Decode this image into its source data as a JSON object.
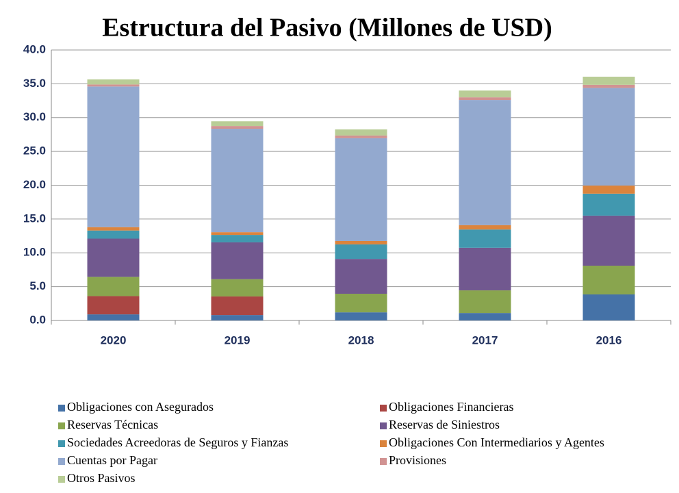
{
  "chart_data": {
    "type": "stacked_bar",
    "title": "Estructura del Pasivo (Millones de USD)",
    "categories": [
      "2020",
      "2019",
      "2018",
      "2017",
      "2016"
    ],
    "series": [
      {
        "name": "Obligaciones con Asegurados",
        "color": "#4572a7",
        "values": [
          0.9,
          0.8,
          1.2,
          1.1,
          3.85
        ]
      },
      {
        "name": "Obligaciones Financieras",
        "color": "#aa4643",
        "values": [
          2.7,
          2.75,
          0,
          0,
          0
        ]
      },
      {
        "name": "Reservas Técnicas",
        "color": "#89a54e",
        "values": [
          2.85,
          2.55,
          2.75,
          3.35,
          4.25
        ]
      },
      {
        "name": "Reservas de Siniestros",
        "color": "#71588f",
        "values": [
          5.65,
          5.45,
          5.15,
          6.3,
          7.4
        ]
      },
      {
        "name": "Sociedades Acreedoras de Seguros y Fianzas",
        "color": "#4198af",
        "values": [
          1.2,
          1.1,
          2.15,
          2.7,
          3.25
        ]
      },
      {
        "name": "Obligaciones Con Intermediarios y Agentes",
        "color": "#db843d",
        "values": [
          0.5,
          0.4,
          0.5,
          0.65,
          1.2
        ]
      },
      {
        "name": "Cuentas por Pagar",
        "color": "#93a9cf",
        "values": [
          20.8,
          15.3,
          15.2,
          18.5,
          14.45
        ]
      },
      {
        "name": "Provisiones",
        "color": "#d19392",
        "values": [
          0.3,
          0.4,
          0.4,
          0.4,
          0.45
        ]
      },
      {
        "name": "Otros Pasivos",
        "color": "#b9cd96",
        "values": [
          0.75,
          0.7,
          0.9,
          1.0,
          1.2
        ]
      }
    ],
    "ylim": [
      0,
      40
    ],
    "yticks": [
      {
        "value": 0,
        "label": "0.0"
      },
      {
        "value": 5,
        "label": "5.0"
      },
      {
        "value": 10,
        "label": "10.0"
      },
      {
        "value": 15,
        "label": "15.0"
      },
      {
        "value": 20,
        "label": "20.0"
      },
      {
        "value": 25,
        "label": "25.0"
      },
      {
        "value": 30,
        "label": "30.0"
      },
      {
        "value": 35,
        "label": "35.0"
      },
      {
        "value": 40,
        "label": "40.0"
      }
    ],
    "grid": true,
    "legend": "bottom"
  }
}
